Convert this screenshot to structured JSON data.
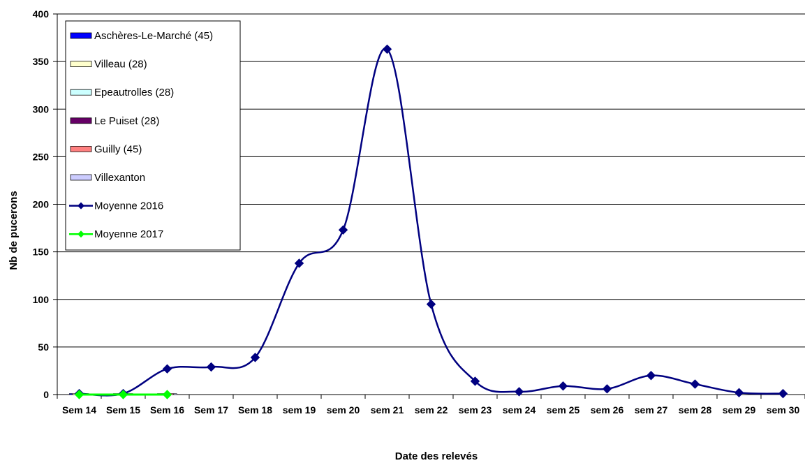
{
  "chart_data": {
    "type": "line",
    "title": "",
    "xlabel": "Date des relevés",
    "ylabel": "Nb de pucerons",
    "ylim": [
      0,
      400
    ],
    "yticks": [
      0,
      50,
      100,
      150,
      200,
      250,
      300,
      350,
      400
    ],
    "grid": "horizontal",
    "legend_position": "top-left",
    "categories": [
      "Sem 14",
      "Sem 15",
      "Sem 16",
      "Sem 17",
      "Sem 18",
      "sem 19",
      "sem 20",
      "sem 21",
      "sem 22",
      "sem 23",
      "sem 24",
      "sem 25",
      "sem 26",
      "sem 27",
      "sem 28",
      "sem 29",
      "sem 30"
    ],
    "series": [
      {
        "name": "Aschères-Le-Marché (45)",
        "kind": "column",
        "color": "#0000ff",
        "values": [
          0,
          0,
          0,
          null,
          null,
          null,
          null,
          null,
          null,
          null,
          null,
          null,
          null,
          null,
          null,
          null,
          null
        ]
      },
      {
        "name": "Villeau (28)",
        "kind": "column",
        "color": "#ffffcc",
        "values": [
          0,
          0,
          0,
          null,
          null,
          null,
          null,
          null,
          null,
          null,
          null,
          null,
          null,
          null,
          null,
          null,
          null
        ]
      },
      {
        "name": "Epeautrolles (28)",
        "kind": "column",
        "color": "#ccffff",
        "values": [
          0,
          0,
          0,
          null,
          null,
          null,
          null,
          null,
          null,
          null,
          null,
          null,
          null,
          null,
          null,
          null,
          null
        ]
      },
      {
        "name": "Le Puiset (28)",
        "kind": "column",
        "color": "#660066",
        "values": [
          0,
          0,
          0,
          null,
          null,
          null,
          null,
          null,
          null,
          null,
          null,
          null,
          null,
          null,
          null,
          null,
          null
        ]
      },
      {
        "name": "Guilly (45)",
        "kind": "column",
        "color": "#ff8080",
        "values": [
          0,
          0,
          0,
          null,
          null,
          null,
          null,
          null,
          null,
          null,
          null,
          null,
          null,
          null,
          null,
          null,
          null
        ]
      },
      {
        "name": "Villexanton",
        "kind": "column",
        "color": "#ccccff",
        "values": [
          0,
          0,
          0,
          null,
          null,
          null,
          null,
          null,
          null,
          null,
          null,
          null,
          null,
          null,
          null,
          null,
          null
        ]
      },
      {
        "name": "Moyenne 2016",
        "kind": "line",
        "color": "#000080",
        "values": [
          1,
          1,
          27,
          29,
          39,
          138,
          173,
          363,
          95,
          14,
          3,
          9,
          6,
          20,
          11,
          2,
          1
        ]
      },
      {
        "name": "Moyenne 2017",
        "kind": "line",
        "color": "#00ff00",
        "values": [
          0,
          0,
          0,
          null,
          null,
          null,
          null,
          null,
          null,
          null,
          null,
          null,
          null,
          null,
          null,
          null,
          null
        ]
      }
    ]
  }
}
